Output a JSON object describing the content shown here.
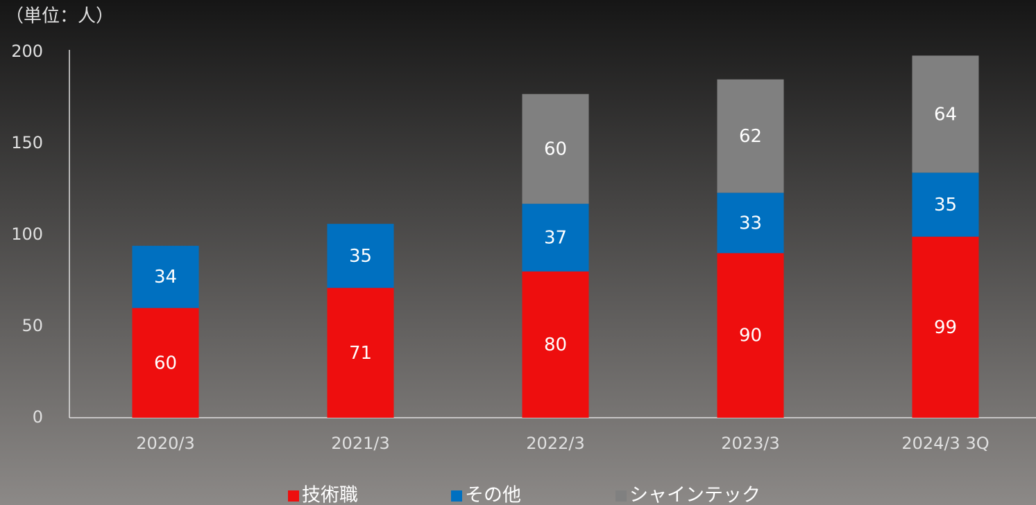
{
  "chart_data": {
    "type": "stacked_bar",
    "unit_label": "（単位：人）",
    "categories": [
      "2020/3",
      "2021/3",
      "2022/3",
      "2023/3",
      "2024/3 3Q"
    ],
    "series": [
      {
        "name": "技術職",
        "color": "#ee0e0e",
        "values": [
          60,
          71,
          80,
          90,
          99
        ]
      },
      {
        "name": "その他",
        "color": "#0070c0",
        "values": [
          34,
          35,
          37,
          33,
          35
        ]
      },
      {
        "name": "シャインテック",
        "color": "#808080",
        "values": [
          null,
          null,
          60,
          62,
          64
        ]
      }
    ],
    "ylim": [
      0,
      200
    ],
    "yticks": [
      0,
      50,
      100,
      150,
      200
    ],
    "grid": false,
    "legend": "bottom"
  }
}
